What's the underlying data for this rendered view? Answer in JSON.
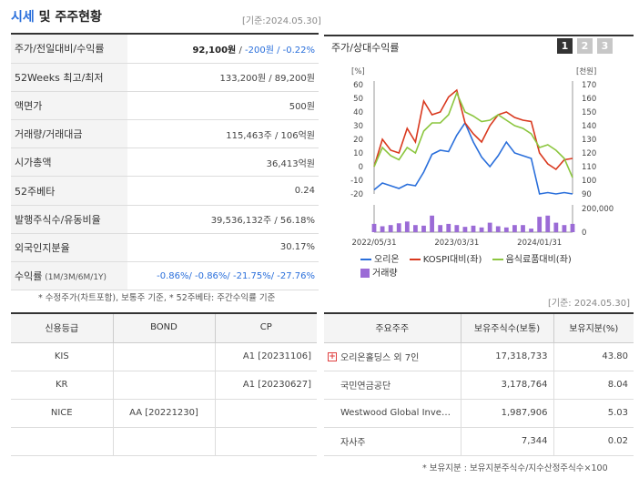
{
  "header": {
    "title_accent": "시세",
    "title_rest": " 및 주주현황",
    "date": "[기준:2024.05.30]"
  },
  "quote": {
    "rows": [
      {
        "label": "주가/전일대비/수익률",
        "value_strong": "92,100원",
        "value_rest": " / ",
        "value_neg": "-200원 / -0.22%"
      },
      {
        "label": "52Weeks 최고/최저",
        "value": "133,200원 / 89,200원"
      },
      {
        "label": "액면가",
        "value": "500원"
      },
      {
        "label": "거래량/거래대금",
        "value": "115,463주 / 106억원"
      },
      {
        "label": "시가총액",
        "value": "36,413억원"
      },
      {
        "label": "52주베타",
        "value": "0.24"
      },
      {
        "label": "발행주식수/유동비율",
        "value": "39,536,132주 / 56.18%"
      },
      {
        "label": "외국인지분율",
        "value": "30.17%"
      },
      {
        "label": "수익률",
        "label_small": " (1M/3M/6M/1Y)",
        "value_neg": "-0.86%/ -0.86%/ -21.75%/ -27.76%"
      }
    ],
    "note": "* 수정주가(차트포함), 보통주 기준, * 52주베타: 주간수익률 기준"
  },
  "chart": {
    "title": "주가/상대수익률",
    "buttons": [
      "1",
      "2",
      "3"
    ],
    "active_button": "1",
    "left_unit": "[%]",
    "right_unit": "[천원]",
    "left_ticks": [
      "60",
      "50",
      "40",
      "30",
      "20",
      "10",
      "0",
      "-10",
      "-20"
    ],
    "right_ticks": [
      "170",
      "160",
      "150",
      "140",
      "130",
      "120",
      "110",
      "100",
      "90"
    ],
    "volume_ticks": [
      "200,000",
      "0"
    ],
    "x_labels": [
      "2022/05/31",
      "2023/03/31",
      "2024/01/31"
    ],
    "legend": [
      "오리온",
      "KOSPI대비(좌)",
      "음식료품대비(좌)",
      "거래량"
    ],
    "colors": {
      "orion": "#2a6fdb",
      "kospi": "#d9381e",
      "food": "#8cc63f",
      "volume": "#9b6bd6"
    }
  },
  "chart_data": {
    "type": "line",
    "x": [
      "2022/05",
      "2022/06",
      "2022/07",
      "2022/08",
      "2022/09",
      "2022/10",
      "2022/11",
      "2022/12",
      "2023/01",
      "2023/02",
      "2023/03",
      "2023/04",
      "2023/05",
      "2023/06",
      "2023/07",
      "2023/08",
      "2023/09",
      "2023/10",
      "2023/11",
      "2023/12",
      "2024/01",
      "2024/02",
      "2024/03",
      "2024/04",
      "2024/05"
    ],
    "series": [
      {
        "name": "오리온",
        "axis": "right",
        "values": [
          93,
          98,
          96,
          94,
          97,
          96,
          106,
          119,
          122,
          121,
          133,
          142,
          128,
          117,
          110,
          118,
          128,
          120,
          118,
          116,
          90,
          91,
          90,
          91,
          90
        ]
      },
      {
        "name": "KOSPI대비(좌)",
        "axis": "left",
        "values": [
          0,
          20,
          12,
          10,
          28,
          18,
          48,
          38,
          40,
          51,
          56,
          32,
          24,
          18,
          30,
          38,
          40,
          36,
          34,
          33,
          10,
          2,
          -2,
          5,
          6
        ]
      },
      {
        "name": "음식료품대비(좌)",
        "axis": "left",
        "values": [
          0,
          14,
          8,
          5,
          14,
          10,
          26,
          32,
          32,
          38,
          54,
          40,
          37,
          33,
          34,
          38,
          34,
          30,
          28,
          24,
          14,
          16,
          12,
          6,
          -8
        ]
      },
      {
        "name": "거래량",
        "axis": "volume",
        "values": [
          70000,
          50000,
          60000,
          75000,
          90000,
          60000,
          55000,
          140000,
          60000,
          70000,
          60000,
          45000,
          55000,
          40000,
          80000,
          50000,
          40000,
          60000,
          60000,
          30000,
          130000,
          140000,
          80000,
          60000,
          70000
        ]
      }
    ],
    "ylim_left": [
      -20,
      60
    ],
    "ylim_right": [
      90,
      170
    ],
    "ylim_volume": [
      0,
      200000
    ]
  },
  "credit": {
    "headers": [
      "신용등급",
      "BOND",
      "CP"
    ],
    "rows": [
      [
        "KIS",
        "",
        "A1 [20231106]"
      ],
      [
        "KR",
        "",
        "A1 [20230627]"
      ],
      [
        "NICE",
        "AA [20221230]",
        ""
      ],
      [
        "",
        "",
        ""
      ]
    ]
  },
  "ownership": {
    "date": "[기준: 2024.05.30]",
    "headers": [
      "주요주주",
      "보유주식수(보통)",
      "보유지분(%)"
    ],
    "rows": [
      [
        "오리온홀딩스 외 7인",
        "17,318,733",
        "43.80"
      ],
      [
        "국민연금공단",
        "3,178,764",
        "8.04"
      ],
      [
        "Westwood Global Inve…",
        "1,987,906",
        "5.03"
      ],
      [
        "자사주",
        "7,344",
        "0.02"
      ]
    ],
    "expand_icon": "plus-icon",
    "note": "* 보유지분 : 보유지분주식수/지수산정주식수×100"
  }
}
